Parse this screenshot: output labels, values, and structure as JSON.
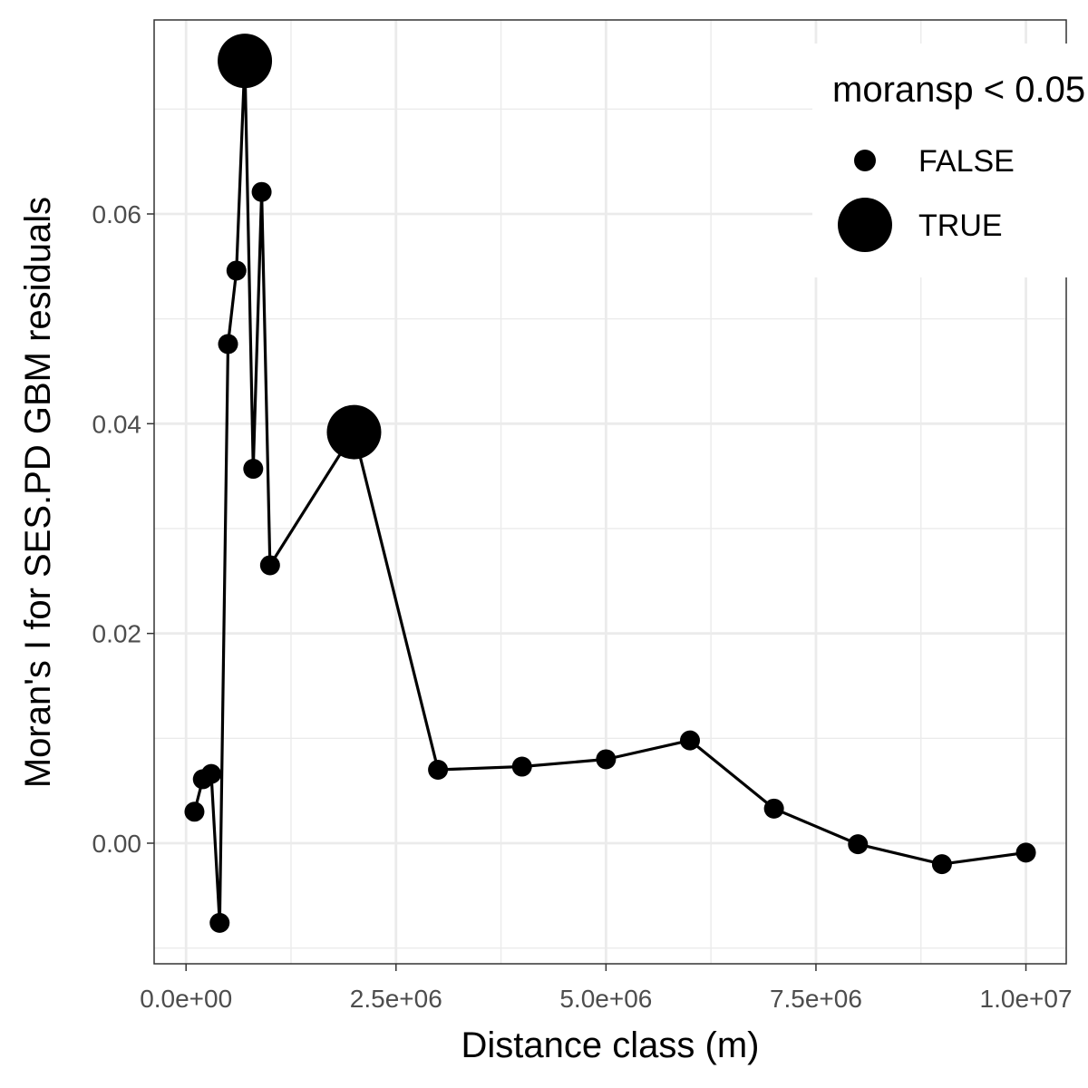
{
  "chart_data": {
    "type": "line",
    "xlabel": "Distance class (m)",
    "ylabel": "Moran's I for SES.PD GBM residuals",
    "xlim": [
      -380000,
      10480000
    ],
    "ylim": [
      -0.0115,
      0.0785
    ],
    "x_ticks": [
      0,
      2500000,
      5000000,
      7500000,
      10000000
    ],
    "x_tick_labels": [
      "0.0e+00",
      "2.5e+06",
      "5.0e+06",
      "7.5e+06",
      "1.0e+07"
    ],
    "y_ticks": [
      0.0,
      0.02,
      0.04,
      0.06
    ],
    "y_tick_labels": [
      "0.00",
      "0.02",
      "0.04",
      "0.06"
    ],
    "grid": true,
    "legend": {
      "title": "moransp < 0.05",
      "placement": "top-right",
      "entries": [
        {
          "label": "FALSE",
          "value": false
        },
        {
          "label": "TRUE",
          "value": true
        }
      ]
    },
    "series": [
      {
        "points": [
          {
            "x": 100000,
            "y": 0.003,
            "sig": false
          },
          {
            "x": 200000,
            "y": 0.0061,
            "sig": false
          },
          {
            "x": 300000,
            "y": 0.0066,
            "sig": false
          },
          {
            "x": 400000,
            "y": -0.0076,
            "sig": false
          },
          {
            "x": 500000,
            "y": 0.0476,
            "sig": false
          },
          {
            "x": 600000,
            "y": 0.0546,
            "sig": false
          },
          {
            "x": 700000,
            "y": 0.0746,
            "sig": true
          },
          {
            "x": 800000,
            "y": 0.0357,
            "sig": false
          },
          {
            "x": 900000,
            "y": 0.0621,
            "sig": false
          },
          {
            "x": 1000000,
            "y": 0.0265,
            "sig": false
          },
          {
            "x": 2000000,
            "y": 0.0392,
            "sig": true
          },
          {
            "x": 3000000,
            "y": 0.007,
            "sig": false
          },
          {
            "x": 4000000,
            "y": 0.0073,
            "sig": false
          },
          {
            "x": 5000000,
            "y": 0.008,
            "sig": false
          },
          {
            "x": 6000000,
            "y": 0.0098,
            "sig": false
          },
          {
            "x": 7000000,
            "y": 0.0033,
            "sig": false
          },
          {
            "x": 8000000,
            "y": -0.0001,
            "sig": false
          },
          {
            "x": 9000000,
            "y": -0.002,
            "sig": false
          },
          {
            "x": 10000000,
            "y": -0.0009,
            "sig": false
          }
        ]
      }
    ]
  }
}
